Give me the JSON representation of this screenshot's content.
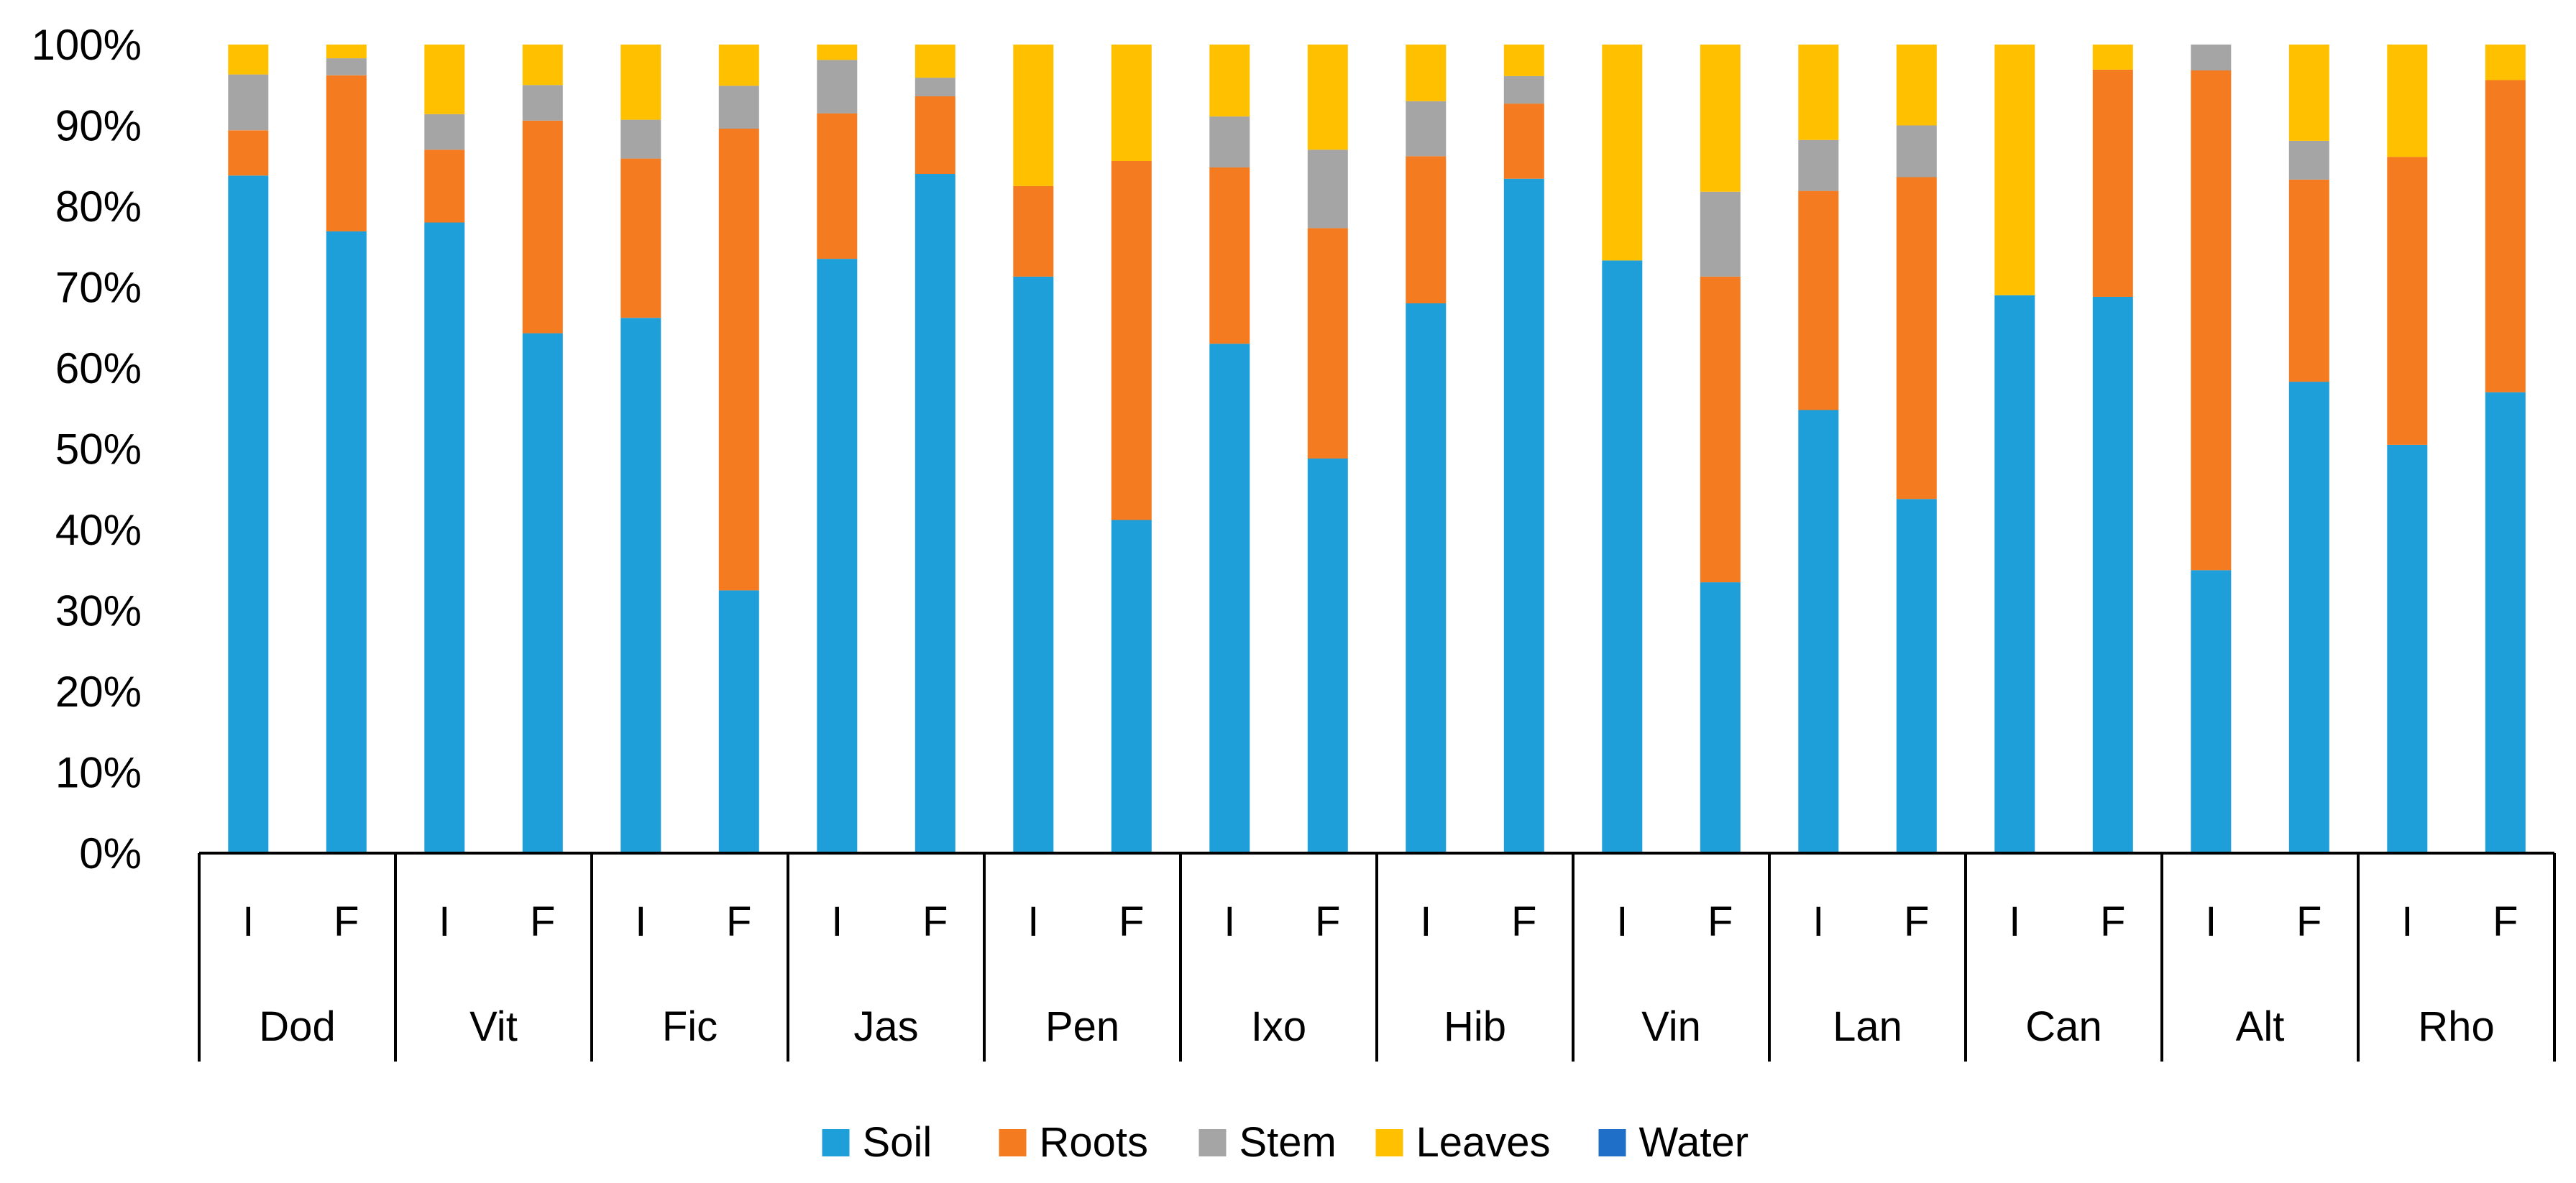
{
  "chart_data": {
    "type": "bar",
    "stacked": true,
    "percent": true,
    "title": "",
    "xlabel": "",
    "ylabel": "",
    "ylim": [
      0,
      100
    ],
    "grid": false,
    "legend_position": "bottom",
    "y_ticks": [
      "0%",
      "10%",
      "20%",
      "30%",
      "40%",
      "50%",
      "60%",
      "70%",
      "80%",
      "90%",
      "100%"
    ],
    "groups": [
      "Dod",
      "Vit",
      "Fic",
      "Jas",
      "Pen",
      "Ixo",
      "Hib",
      "Vin",
      "Lan",
      "Can",
      "Alt",
      "Rho"
    ],
    "sub_categories": [
      "I",
      "F"
    ],
    "categories": [
      "Dod I",
      "Dod F",
      "Vit I",
      "Vit F",
      "Fic I",
      "Fic F",
      "Jas I",
      "Jas F",
      "Pen I",
      "Pen F",
      "Ixo I",
      "Ixo F",
      "Hib I",
      "Hib F",
      "Vin I",
      "Vin F",
      "Lan I",
      "Lan F",
      "Can I",
      "Can F",
      "Alt I",
      "Alt F",
      "Rho I",
      "Rho F"
    ],
    "series": [
      {
        "name": "Soil",
        "color": "#1f9fd9",
        "values": [
          83.8,
          76.9,
          78.0,
          64.3,
          66.2,
          32.5,
          73.5,
          84.0,
          71.3,
          41.2,
          63.0,
          48.8,
          68.0,
          83.4,
          73.3,
          33.5,
          54.8,
          43.8,
          69.0,
          68.8,
          35.0,
          58.3,
          50.5,
          57.0
        ]
      },
      {
        "name": "Roots",
        "color": "#f47b20",
        "values": [
          5.6,
          19.3,
          9.0,
          26.3,
          19.7,
          57.1,
          18.0,
          9.6,
          11.2,
          44.4,
          21.8,
          28.5,
          18.2,
          9.3,
          0.0,
          37.8,
          27.1,
          39.8,
          0.0,
          28.1,
          61.8,
          25.0,
          35.6,
          38.6
        ]
      },
      {
        "name": "Stem",
        "color": "#a5a5a5",
        "values": [
          6.9,
          2.1,
          4.4,
          4.4,
          4.8,
          5.3,
          6.6,
          2.3,
          0.0,
          0.0,
          6.3,
          9.7,
          6.8,
          3.4,
          0.0,
          10.5,
          6.3,
          6.4,
          0.0,
          0.0,
          3.2,
          4.8,
          0.0,
          0.0
        ]
      },
      {
        "name": "Leaves",
        "color": "#ffc000",
        "values": [
          3.7,
          1.7,
          8.6,
          5.0,
          9.3,
          5.1,
          1.9,
          4.1,
          17.5,
          14.4,
          8.9,
          13.0,
          7.0,
          3.9,
          26.7,
          18.2,
          11.8,
          10.0,
          31.0,
          3.1,
          0.0,
          11.9,
          13.9,
          4.4
        ]
      },
      {
        "name": "Water",
        "color": "#1f6fc9",
        "values": [
          0,
          0,
          0,
          0,
          0,
          0,
          0,
          0,
          0,
          0,
          0,
          0,
          0,
          0,
          0,
          0,
          0,
          0,
          0,
          0,
          0,
          0,
          0,
          0
        ]
      }
    ]
  }
}
